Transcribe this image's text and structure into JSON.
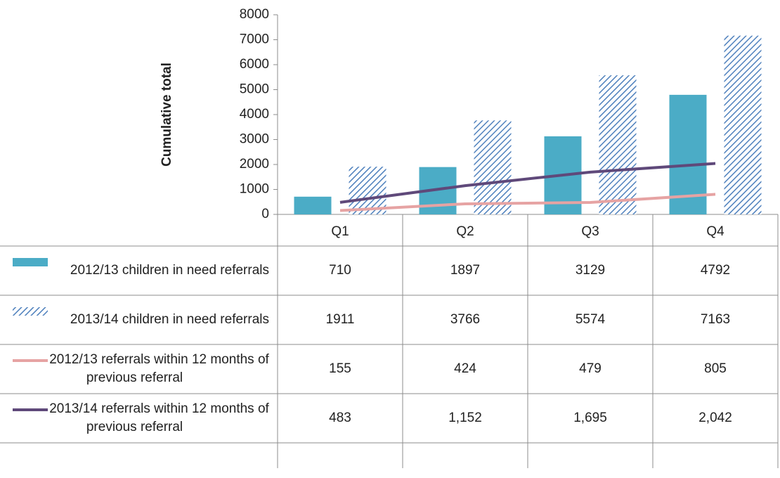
{
  "chart_data": {
    "type": "bar",
    "y_label": "Cumulative total",
    "categories": [
      "Q1",
      "Q2",
      "Q3",
      "Q4"
    ],
    "ylim": [
      0,
      8000
    ],
    "yticks": [
      0,
      1000,
      2000,
      3000,
      4000,
      5000,
      6000,
      7000,
      8000
    ],
    "grid": false,
    "series": [
      {
        "name": "2012/13 children in need referrals",
        "type": "bar",
        "fill": "solid",
        "color": "#4bacc6",
        "values": [
          710,
          1897,
          3129,
          4792
        ]
      },
      {
        "name": "2013/14 children in need referrals",
        "type": "bar",
        "fill": "hatch",
        "color": "#4f81bd",
        "values": [
          1911,
          3766,
          5574,
          7163
        ]
      },
      {
        "name": "2012/13 referrals within 12 months of previous referral",
        "type": "line",
        "color": "#e6a3a3",
        "values": [
          155,
          424,
          479,
          805
        ]
      },
      {
        "name": "2013/14 referrals within 12 months of previous referral",
        "type": "line",
        "color": "#5f497a",
        "values": [
          483,
          1152,
          1695,
          2042
        ],
        "value_labels": [
          "483",
          "1,152",
          "1,695",
          "2,042"
        ]
      }
    ]
  }
}
